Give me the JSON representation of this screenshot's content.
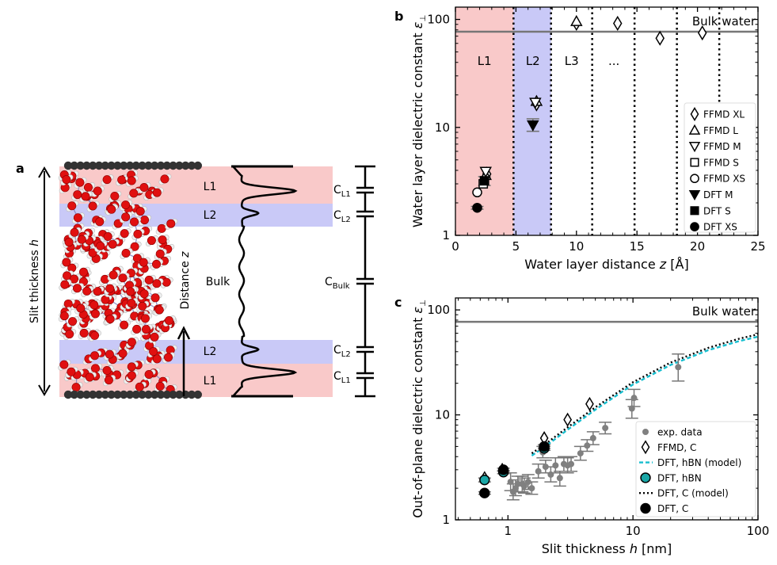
{
  "panels": {
    "a": {
      "letter": "a",
      "y_axis_label": "Slit thickness ",
      "y_axis_var": "h",
      "z_label": "Distance ",
      "z_var": "z",
      "bands": [
        "L1",
        "L2",
        "Bulk",
        "L2",
        "L1"
      ],
      "capacitors": [
        {
          "base": "C",
          "sub": "L1"
        },
        {
          "base": "C",
          "sub": "L2"
        },
        {
          "base": "C",
          "sub": "Bulk"
        },
        {
          "base": "C",
          "sub": "L2"
        },
        {
          "base": "C",
          "sub": "L1"
        }
      ],
      "colors": {
        "layer1": "#f9c9c9",
        "layer2": "#c9c9f7",
        "oxygen": "#e01010",
        "hydrogen": "#f0f0f0",
        "bond": "#7f7fc0",
        "wall": "#333333"
      }
    },
    "b": {
      "letter": "b"
    },
    "c": {
      "letter": "c"
    }
  },
  "chart_data": [
    {
      "type": "scatter",
      "panel": "b",
      "xlabel": "Water layer distance z [Å]",
      "xlabel_text": "Water layer distance ",
      "xlabel_var": "z",
      "xlabel_unit": " [Å]",
      "ylabel": "Water layer dielectric constant ε⊥",
      "ylabel_text": "Water layer dielectric constant ",
      "ylabel_var": "ε",
      "ylabel_sub": "⊥",
      "xlim": [
        0,
        25
      ],
      "ylim": [
        1,
        130
      ],
      "yscale": "log",
      "xticks": [
        "0",
        "5",
        "10",
        "15",
        "20",
        "25"
      ],
      "xtick_values": [
        0,
        5,
        10,
        15,
        20,
        25
      ],
      "yticks": [
        "1",
        "10",
        "100"
      ],
      "ytick_values": [
        1,
        10,
        100
      ],
      "bulk_water": {
        "label": "Bulk water",
        "value": 77
      },
      "regions": [
        {
          "label": "L1",
          "x_center": 2.4,
          "color": "#f9c9c9"
        },
        {
          "label": "L2",
          "x_center": 6.4,
          "color": "#c9c9f7"
        },
        {
          "label": "L3",
          "x_center": 9.6
        },
        {
          "label": "...",
          "x_center": 13.1
        }
      ],
      "shading": [
        {
          "x0": 0,
          "x1": 4.8,
          "color": "#f9c9c9"
        },
        {
          "x0": 4.8,
          "x1": 7.9,
          "color": "#c9c9f7"
        }
      ],
      "dotted_lines_x": [
        4.8,
        7.9,
        11.3,
        14.8,
        18.3,
        21.8
      ],
      "series": [
        {
          "name": "FFMD XL",
          "marker": "diamond",
          "filled": false,
          "points": [
            [
              2.6,
              3.7
            ],
            [
              6.7,
              16.5
            ],
            [
              10.0,
              92
            ],
            [
              13.4,
              92
            ],
            [
              16.9,
              67
            ],
            [
              20.4,
              75
            ]
          ]
        },
        {
          "name": "FFMD L",
          "marker": "triangle-up",
          "filled": false,
          "points": [
            [
              2.5,
              3.6
            ],
            [
              6.7,
              17.5
            ],
            [
              10.0,
              96
            ]
          ]
        },
        {
          "name": "FFMD M",
          "marker": "triangle-down",
          "filled": false,
          "points": [
            [
              2.5,
              3.9
            ],
            [
              6.6,
              17.0
            ]
          ]
        },
        {
          "name": "FFMD S",
          "marker": "square",
          "filled": false,
          "points": [
            [
              2.3,
              3.0
            ]
          ]
        },
        {
          "name": "FFMD XS",
          "marker": "circle",
          "filled": false,
          "points": [
            [
              1.8,
              2.5
            ]
          ]
        },
        {
          "name": "DFT M",
          "marker": "triangle-down",
          "filled": true,
          "points": [
            [
              6.4,
              10.5
            ]
          ],
          "errors": [
            [
              6.4,
              9.2,
              12.0
            ]
          ]
        },
        {
          "name": "DFT S",
          "marker": "square",
          "filled": true,
          "points": [
            [
              2.4,
              3.2
            ]
          ],
          "errors": [
            [
              2.4,
              2.9,
              3.5
            ]
          ]
        },
        {
          "name": "DFT XS",
          "marker": "circle",
          "filled": true,
          "points": [
            [
              1.8,
              1.8
            ]
          ],
          "errors": [
            [
              1.8,
              1.75,
              1.85
            ]
          ]
        }
      ],
      "legend_position": "lower-right"
    },
    {
      "type": "scatter",
      "panel": "c",
      "xlabel": "Slit thickness h [nm]",
      "xlabel_text": "Slit thickness ",
      "xlabel_var": "h",
      "xlabel_unit": " [nm]",
      "ylabel": "Out-of-plane dielectric constant ε⊥",
      "ylabel_text": "Out-of-plane dielectric constant ",
      "ylabel_var": "ε",
      "ylabel_sub": "⊥",
      "xscale": "log",
      "yscale": "log",
      "xlim": [
        0.38,
        100
      ],
      "ylim": [
        1,
        130
      ],
      "xticks": [
        "1",
        "10",
        "100"
      ],
      "xtick_values": [
        1,
        10,
        100
      ],
      "yticks": [
        "1",
        "10",
        "100"
      ],
      "ytick_values": [
        1,
        10,
        100
      ],
      "bulk_water": {
        "label": "Bulk water",
        "value": 77
      },
      "series": [
        {
          "name": "exp. data",
          "marker": "circle-small",
          "color": "#808080",
          "points": [
            [
              1.05,
              2.3
            ],
            [
              1.1,
              1.85
            ],
            [
              1.15,
              2.0
            ],
            [
              1.2,
              2.2
            ],
            [
              1.3,
              2.2
            ],
            [
              1.35,
              2.1
            ],
            [
              1.45,
              2.3
            ],
            [
              1.55,
              2.0
            ],
            [
              1.75,
              2.9
            ],
            [
              1.9,
              4.4
            ],
            [
              2.0,
              3.2
            ],
            [
              2.2,
              2.7
            ],
            [
              2.4,
              3.3
            ],
            [
              2.6,
              2.5
            ],
            [
              2.8,
              3.4
            ],
            [
              3.0,
              3.3
            ],
            [
              3.2,
              3.4
            ],
            [
              3.8,
              4.3
            ],
            [
              4.3,
              5.1
            ],
            [
              4.8,
              6.0
            ],
            [
              6.0,
              7.5
            ],
            [
              9.8,
              11.5
            ],
            [
              10.2,
              14.5
            ],
            [
              23.0,
              28.5
            ]
          ],
          "errors": [
            [
              1.05,
              1.9,
              2.8
            ],
            [
              1.1,
              1.55,
              2.2
            ],
            [
              1.15,
              1.7,
              2.4
            ],
            [
              1.2,
              1.85,
              2.6
            ],
            [
              1.3,
              1.85,
              2.6
            ],
            [
              1.35,
              1.8,
              2.5
            ],
            [
              1.45,
              1.95,
              2.7
            ],
            [
              1.55,
              1.75,
              2.3
            ],
            [
              1.75,
              2.5,
              3.4
            ],
            [
              1.9,
              3.9,
              5.0
            ],
            [
              2.0,
              2.8,
              3.7
            ],
            [
              2.2,
              2.3,
              3.2
            ],
            [
              2.4,
              2.8,
              3.9
            ],
            [
              2.6,
              2.1,
              2.9
            ],
            [
              2.8,
              2.9,
              4.0
            ],
            [
              3.0,
              2.8,
              3.9
            ],
            [
              3.2,
              2.9,
              4.0
            ],
            [
              3.8,
              3.7,
              5.0
            ],
            [
              4.3,
              4.5,
              5.8
            ],
            [
              4.8,
              5.2,
              6.9
            ],
            [
              6.0,
              6.6,
              8.5
            ],
            [
              9.8,
              9.3,
              14.0
            ],
            [
              10.2,
              12.0,
              17.5
            ],
            [
              23.0,
              21.0,
              38.0
            ]
          ]
        },
        {
          "name": "FFMD, C",
          "marker": "diamond",
          "filled": false,
          "points": [
            [
              0.65,
              2.5
            ],
            [
              0.9,
              3.0
            ],
            [
              1.95,
              6.0
            ],
            [
              3.0,
              9.0
            ],
            [
              4.5,
              12.7
            ]
          ]
        },
        {
          "name": "DFT, hBN (model)",
          "line": "dashed",
          "color": "#17becf"
        },
        {
          "name": "DFT, hBN",
          "marker": "circle",
          "color": "#1aa7a7",
          "points": [
            [
              0.65,
              2.4
            ],
            [
              0.92,
              2.85
            ],
            [
              1.95,
              4.8
            ]
          ],
          "errors": [
            [
              0.65,
              2.3,
              2.5
            ],
            [
              0.92,
              2.75,
              2.95
            ],
            [
              1.95,
              4.6,
              5.0
            ]
          ]
        },
        {
          "name": "DFT, C (model)",
          "line": "dotted",
          "color": "#000000"
        },
        {
          "name": "DFT, C",
          "marker": "circle",
          "filled": true,
          "points": [
            [
              0.65,
              1.8
            ],
            [
              0.92,
              3.0
            ],
            [
              1.95,
              5.0
            ]
          ],
          "errors": [
            [
              0.65,
              1.75,
              1.85
            ],
            [
              0.92,
              2.9,
              3.1
            ],
            [
              1.95,
              4.8,
              5.2
            ]
          ]
        }
      ],
      "model_curve": {
        "x": [
          1.55,
          2,
          3,
          5,
          10,
          20,
          40,
          70,
          100
        ],
        "y": [
          4.3,
          5.3,
          7.6,
          11.8,
          20.5,
          31.5,
          43.5,
          53.0,
          58.5
        ]
      },
      "legend_position": "lower-right"
    }
  ]
}
